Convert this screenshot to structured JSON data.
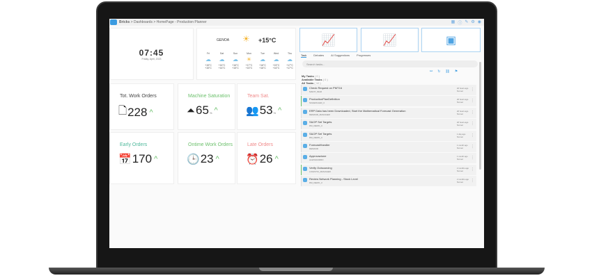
{
  "breadcrumb": {
    "app": "Bricks",
    "items": [
      "Dashboards",
      "HomePage - Production Planner"
    ]
  },
  "clock": {
    "time": "07:45",
    "date": "Friday, April, 2023"
  },
  "weather": {
    "city": "GENOA",
    "current_temp": "+15°C",
    "current_icon": "sun-cloud-icon",
    "days": [
      {
        "day": "Fri",
        "icon": "cloud-icon",
        "max": "+15°C",
        "min": "+15°C"
      },
      {
        "day": "Sat",
        "icon": "cloud-icon",
        "max": "+16°C",
        "min": "+16°C"
      },
      {
        "day": "Sun",
        "icon": "cloud-icon",
        "max": "+16°C",
        "min": "+15°C"
      },
      {
        "day": "Mon",
        "icon": "sun-icon",
        "max": "+17°C",
        "min": "+15°C"
      },
      {
        "day": "Tue",
        "icon": "cloud-icon",
        "max": "+16°C",
        "min": "+16°C"
      },
      {
        "day": "Wed",
        "icon": "cloud-icon",
        "max": "+15°C",
        "min": "+16°C"
      },
      {
        "day": "Thu",
        "icon": "cloud-icon",
        "max": "+17°C",
        "min": "+17°C"
      }
    ]
  },
  "kpis": [
    {
      "title": "Tot. Work Orders",
      "value": "228",
      "unit": "",
      "color": "#444444",
      "icon": "add-document-icon"
    },
    {
      "title": "Machine Saturation",
      "value": "65",
      "unit": "%",
      "color": "#6cc06c",
      "icon": "pyramid-icon"
    },
    {
      "title": "Team Sat.",
      "value": "53",
      "unit": "%",
      "color": "#f08a8a",
      "icon": "team-icon"
    },
    {
      "title": "Early Orders",
      "value": "170",
      "unit": "",
      "color": "#4db89a",
      "icon": "calendar-clock-icon"
    },
    {
      "title": "Ontime Work Orders",
      "value": "23",
      "unit": "",
      "color": "#6cc06c",
      "icon": "clock-icon"
    },
    {
      "title": "Late Orders",
      "value": "26",
      "unit": "",
      "color": "#f08a8a",
      "icon": "alarm-clock-icon"
    }
  ],
  "tabs": [
    "Task",
    "Debates",
    "AI Suggestions",
    "Progresses"
  ],
  "search_placeholder": "Search tasks...",
  "groups": [
    {
      "label": "My Tasks",
      "count": "( 0 )"
    },
    {
      "label": "Available Tasks",
      "count": "( 0 )"
    },
    {
      "label": "All Tasks",
      "count": "( 10 )"
    }
  ],
  "tasks": [
    {
      "title": "Check Request on PMT16",
      "owner": "MAINT_MGR",
      "time": "20 hours ago",
      "due": "Not set"
    },
    {
      "title": "ProductionPlanDefinition",
      "owner": "SCHEDULER_3",
      "time": "20 hours ago",
      "due": "Not set"
    },
    {
      "title": "ERP Data has been Downloaded, Start the Mathematical Forecast Generation",
      "owner": "DEMAND_MANAGER",
      "time": "20 hours ago",
      "due": "Not set"
    },
    {
      "title": "S&OP Set Targets",
      "owner": "DM_DEMO_3",
      "time": "20 hours ago",
      "due": "Not set"
    },
    {
      "title": "S&OP Set Targets",
      "owner": "DM_DEMO_3",
      "time": "1 day ago",
      "due": "Not set"
    },
    {
      "title": "ForecastHandler",
      "owner": "DEMAND",
      "time": "1 month ago",
      "due": "Not set"
    },
    {
      "title": "Approvazione",
      "owner": "ALESSANDRO",
      "time": "1 month ago",
      "due": "Not set"
    },
    {
      "title": "Verify Outsourcing",
      "owner": "LOGISTIC_MANAGER",
      "time": "2 months ago",
      "due": "Not set"
    },
    {
      "title": "Review Network Planning - Stock Level",
      "owner": "DM_DEMO_3",
      "time": "2 months ago",
      "due": "Not set"
    }
  ]
}
